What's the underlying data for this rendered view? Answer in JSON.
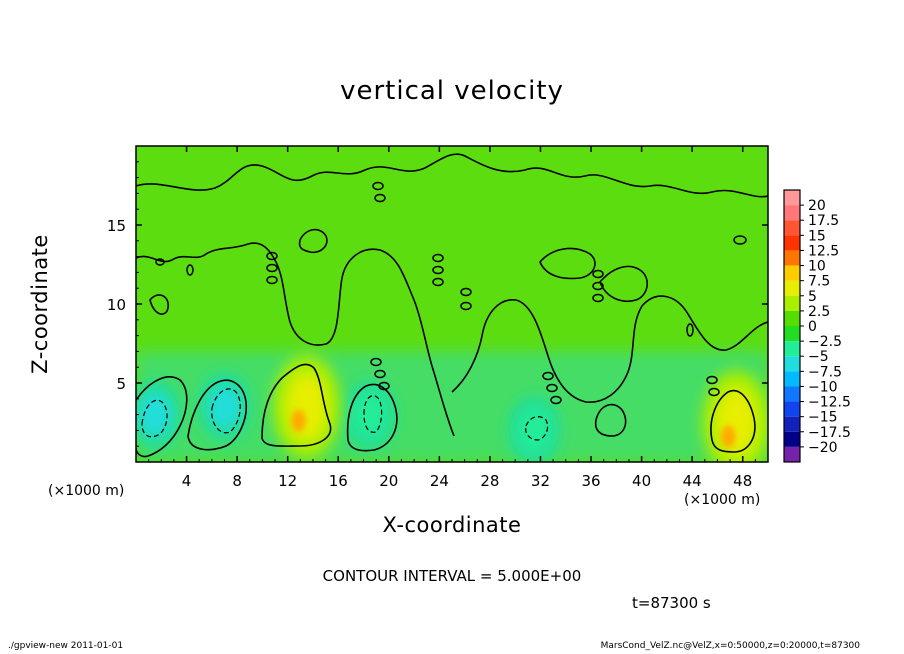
{
  "chart_data": {
    "type": "heatmap",
    "title": "vertical velocity",
    "xlabel": "X-coordinate",
    "ylabel": "Z-coordinate",
    "x_unit_label": "(×1000 m)",
    "xlim": [
      0,
      50
    ],
    "ylim": [
      0,
      20
    ],
    "x_ticks": [
      4,
      8,
      12,
      16,
      20,
      24,
      28,
      32,
      36,
      40,
      44,
      48
    ],
    "y_ticks": [
      5,
      10,
      15
    ],
    "colorbar_levels": [
      20,
      17.5,
      15,
      12.5,
      10,
      7.5,
      5,
      2.5,
      0,
      -2.5,
      -5,
      -7.5,
      -10,
      -12.5,
      -15,
      -17.5,
      -20
    ],
    "colorbar_labels": [
      "20",
      "17.5",
      "15",
      "12.5",
      "10",
      "7.5",
      "5",
      "2.5",
      "0",
      "−2.5",
      "−5",
      "−7.5",
      "−10",
      "−12.5",
      "−15",
      "−17.5",
      "−20"
    ],
    "colorbar_colors": [
      "#ff9999",
      "#ff7777",
      "#ff5533",
      "#ff3300",
      "#ff7700",
      "#ffcc00",
      "#e8ee00",
      "#aaee00",
      "#55dd00",
      "#22dd22",
      "#22ee99",
      "#22dddd",
      "#00bbff",
      "#1177ff",
      "#1144ee",
      "#1122bb",
      "#000088",
      "#7722aa"
    ],
    "contour_interval_text": "CONTOUR INTERVAL = 5.000E+00",
    "time_text": "t=87300 s",
    "updraft_cores": [
      {
        "x": 13.5,
        "z": 3.5,
        "w": 6
      },
      {
        "x": 47.5,
        "z": 2.5,
        "w": 6
      }
    ],
    "downdraft_cores": [
      {
        "x": 1.5,
        "z": 3.0,
        "w": -7.5
      },
      {
        "x": 7.0,
        "z": 3.5,
        "w": -7.5
      },
      {
        "x": 18.5,
        "z": 3.0,
        "w": -5
      },
      {
        "x": 31.5,
        "z": 2.0,
        "w": -5
      }
    ]
  },
  "footer": {
    "left": "./gpview-new   2011-01-01",
    "right": "MarsCond_VelZ.nc@VelZ,x=0:50000,z=0:20000,t=87300"
  }
}
